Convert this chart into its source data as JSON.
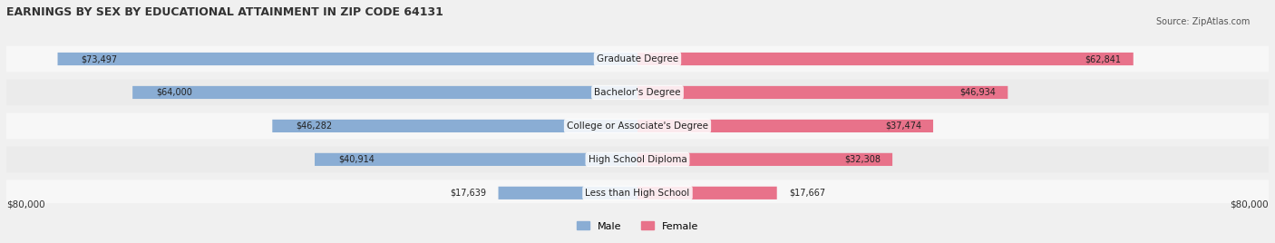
{
  "title": "EARNINGS BY SEX BY EDUCATIONAL ATTAINMENT IN ZIP CODE 64131",
  "source": "Source: ZipAtlas.com",
  "categories": [
    "Less than High School",
    "High School Diploma",
    "College or Associate's Degree",
    "Bachelor's Degree",
    "Graduate Degree"
  ],
  "male_values": [
    17639,
    40914,
    46282,
    64000,
    73497
  ],
  "female_values": [
    17667,
    32308,
    37474,
    46934,
    62841
  ],
  "male_color": "#8aadd4",
  "female_color": "#e8728a",
  "max_value": 80000,
  "bg_color": "#f0f0f0",
  "row_bg_light": "#f7f7f7",
  "row_bg_dark": "#ebebeb",
  "label_color": "#333333",
  "axis_label": "$80,000"
}
